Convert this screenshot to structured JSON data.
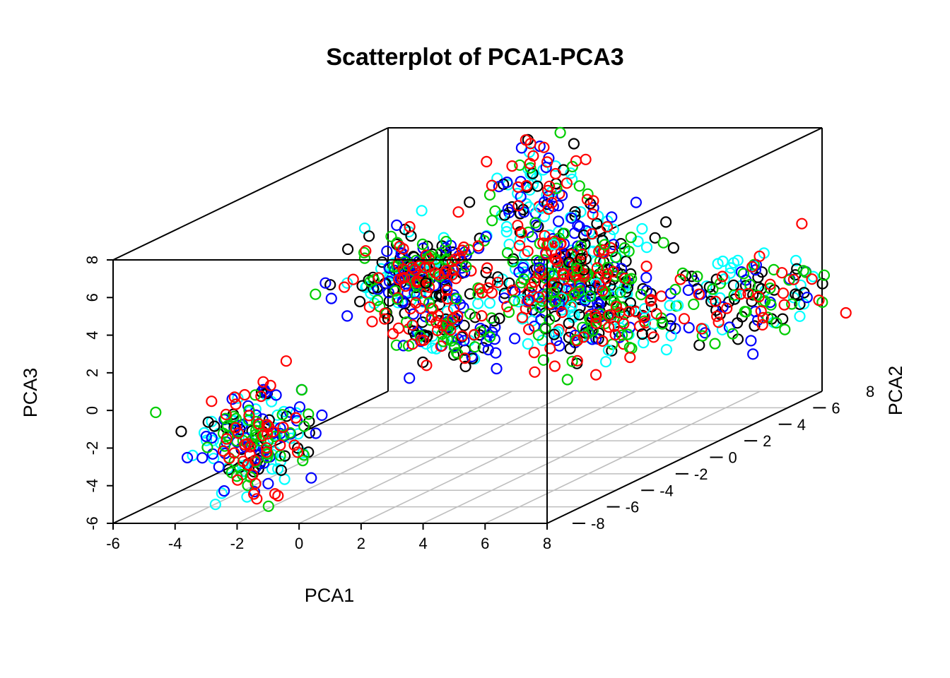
{
  "chart_data": {
    "type": "scatter",
    "subtype": "3d-scatter",
    "title": "Scatterplot of PCA1-PCA3",
    "xlabel": "PCA1",
    "ylabel": "PCA2",
    "zlabel": "PCA3",
    "xlim": [
      -6,
      8
    ],
    "ylim": [
      -8,
      8
    ],
    "zlim": [
      -6,
      8
    ],
    "x_ticks": [
      "-6",
      "-4",
      "-2",
      "0",
      "2",
      "4",
      "6",
      "8"
    ],
    "y_ticks": [
      "-8",
      "-6",
      "-4",
      "-2",
      "0",
      "2",
      "4",
      "6",
      "8"
    ],
    "z_ticks": [
      "-6",
      "-4",
      "-2",
      "0",
      "2",
      "4",
      "6",
      "8"
    ],
    "grid": "on floor (x-y plane)",
    "marker": "open circle",
    "colors": [
      "#000000",
      "#ff0000",
      "#00cd00",
      "#0000ff",
      "#00ffff"
    ],
    "clusters": [
      {
        "center": [
          -1.4,
          -8.0,
          -1.6
        ],
        "spread": [
          0.8,
          0.6,
          1.3
        ],
        "count": 210
      },
      {
        "center": [
          0.9,
          -3.0,
          5.0
        ],
        "spread": [
          1.1,
          0.7,
          1.0
        ],
        "count": 240
      },
      {
        "center": [
          2.0,
          -3.0,
          2.0
        ],
        "spread": [
          0.9,
          0.6,
          0.9
        ],
        "count": 110
      },
      {
        "center": [
          3.8,
          0.6,
          3.5
        ],
        "spread": [
          1.3,
          0.9,
          1.6
        ],
        "count": 320
      },
      {
        "center": [
          1.3,
          3.5,
          6.6
        ],
        "spread": [
          0.9,
          0.6,
          1.4
        ],
        "count": 90
      },
      {
        "center": [
          7.0,
          -6.0,
          5.5
        ],
        "spread": [
          0.5,
          0.6,
          0.6
        ],
        "count": 6
      },
      {
        "center": [
          6.3,
          -2.0,
          2.3
        ],
        "spread": [
          1.1,
          1.1,
          1.3
        ],
        "count": 150
      },
      {
        "center": [
          8.3,
          2.5,
          1.5
        ],
        "spread": [
          1.3,
          1.4,
          1.1
        ],
        "count": 150
      }
    ]
  }
}
